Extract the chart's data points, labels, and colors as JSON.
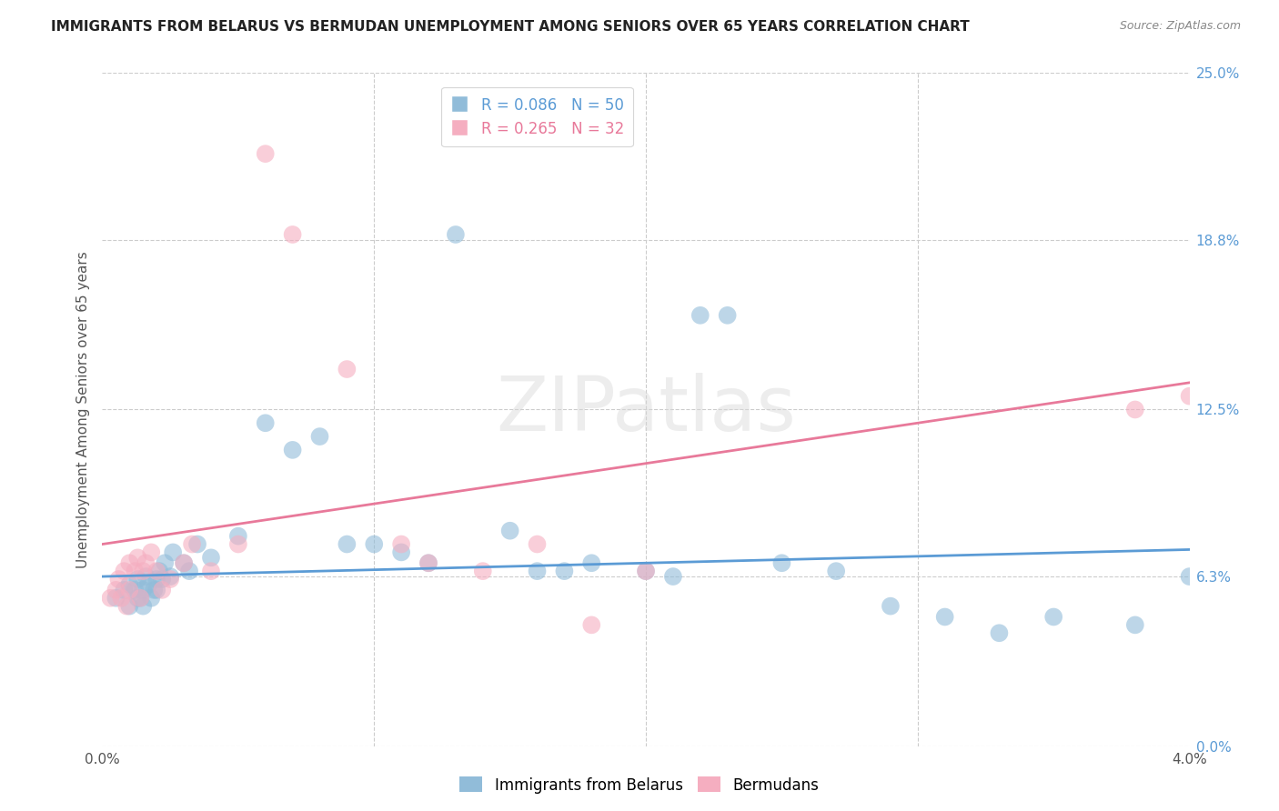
{
  "title": "IMMIGRANTS FROM BELARUS VS BERMUDAN UNEMPLOYMENT AMONG SENIORS OVER 65 YEARS CORRELATION CHART",
  "source": "Source: ZipAtlas.com",
  "ylabel": "Unemployment Among Seniors over 65 years",
  "xlabel_ticks": [
    "0.0%",
    "4.0%"
  ],
  "xlabel_vals": [
    0.0,
    0.04
  ],
  "ylabel_ticks_right": [
    "25.0%",
    "18.8%",
    "12.5%",
    "6.3%",
    "0.0%"
  ],
  "ylabel_vals": [
    0.25,
    0.188,
    0.125,
    0.063,
    0.0
  ],
  "xlim": [
    0.0,
    0.04
  ],
  "ylim": [
    0.0,
    0.25
  ],
  "legend1_label": "Immigrants from Belarus",
  "legend2_label": "Bermudans",
  "R1": 0.086,
  "N1": 50,
  "R2": 0.265,
  "N2": 32,
  "color_blue": "#91bcd9",
  "color_pink": "#f5aec0",
  "line_color_blue": "#5b9bd5",
  "line_color_pink": "#e8799a",
  "watermark_text": "ZIPatlas",
  "blue_x": [
    0.0005,
    0.0008,
    0.001,
    0.001,
    0.0012,
    0.0013,
    0.0013,
    0.0014,
    0.0015,
    0.0015,
    0.0016,
    0.0017,
    0.0018,
    0.0019,
    0.002,
    0.002,
    0.0021,
    0.0022,
    0.0023,
    0.0025,
    0.0026,
    0.003,
    0.0032,
    0.0035,
    0.004,
    0.005,
    0.006,
    0.007,
    0.008,
    0.009,
    0.01,
    0.011,
    0.012,
    0.013,
    0.015,
    0.016,
    0.017,
    0.018,
    0.02,
    0.021,
    0.022,
    0.023,
    0.025,
    0.027,
    0.029,
    0.031,
    0.033,
    0.035,
    0.038,
    0.04
  ],
  "blue_y": [
    0.055,
    0.058,
    0.052,
    0.06,
    0.058,
    0.055,
    0.062,
    0.055,
    0.052,
    0.058,
    0.063,
    0.06,
    0.055,
    0.058,
    0.062,
    0.058,
    0.065,
    0.062,
    0.068,
    0.063,
    0.072,
    0.068,
    0.065,
    0.075,
    0.07,
    0.078,
    0.12,
    0.11,
    0.115,
    0.075,
    0.075,
    0.072,
    0.068,
    0.19,
    0.08,
    0.065,
    0.065,
    0.068,
    0.065,
    0.063,
    0.16,
    0.16,
    0.068,
    0.065,
    0.052,
    0.048,
    0.042,
    0.048,
    0.045,
    0.063
  ],
  "pink_x": [
    0.0003,
    0.0005,
    0.0006,
    0.0007,
    0.0008,
    0.0009,
    0.001,
    0.001,
    0.0012,
    0.0013,
    0.0014,
    0.0015,
    0.0016,
    0.0018,
    0.002,
    0.0022,
    0.0025,
    0.003,
    0.0033,
    0.004,
    0.005,
    0.006,
    0.007,
    0.009,
    0.011,
    0.012,
    0.014,
    0.016,
    0.018,
    0.02,
    0.038,
    0.04
  ],
  "pink_y": [
    0.055,
    0.058,
    0.062,
    0.055,
    0.065,
    0.052,
    0.058,
    0.068,
    0.065,
    0.07,
    0.055,
    0.065,
    0.068,
    0.072,
    0.065,
    0.058,
    0.062,
    0.068,
    0.075,
    0.065,
    0.075,
    0.22,
    0.19,
    0.14,
    0.075,
    0.068,
    0.065,
    0.075,
    0.045,
    0.065,
    0.125,
    0.13
  ],
  "title_fontsize": 11,
  "source_fontsize": 9,
  "axis_tick_fontsize": 11
}
